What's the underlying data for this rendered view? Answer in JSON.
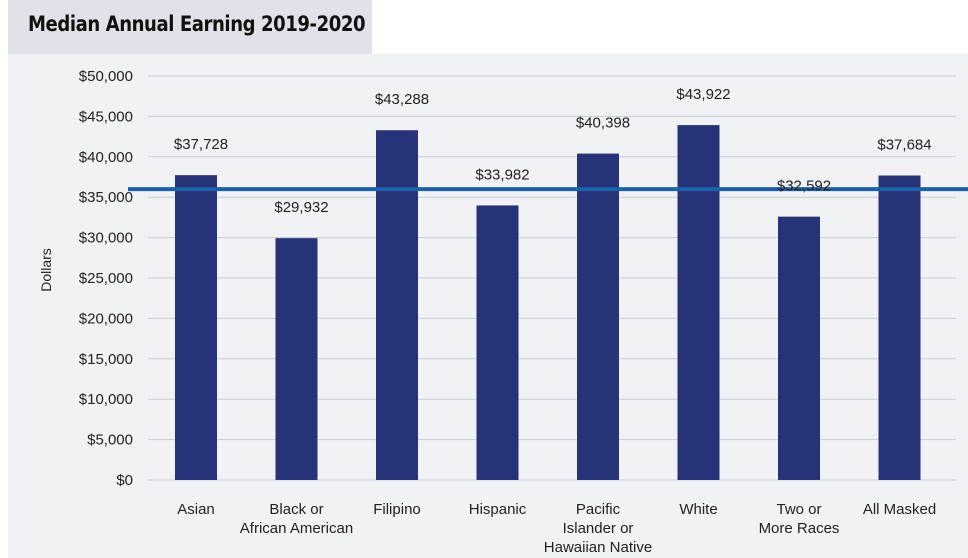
{
  "chart_data": {
    "type": "bar",
    "title": "Median Annual Earning 2019-2020",
    "ylabel": "Dollars",
    "xlabel": "",
    "ylim": [
      0,
      50000
    ],
    "yticks": [
      0,
      5000,
      10000,
      15000,
      20000,
      25000,
      30000,
      35000,
      40000,
      45000,
      50000
    ],
    "ytick_labels": [
      "$0",
      "$5,000",
      "$10,000",
      "$15,000",
      "$20,000",
      "$25,000",
      "$30,000",
      "$35,000",
      "$40,000",
      "$45,000",
      "$50,000"
    ],
    "categories": [
      "Asian",
      "Black or African American",
      "Filipino",
      "Hispanic",
      "Pacific Islander or Hawaiian Native",
      "White",
      "Two or More Races",
      "All Masked"
    ],
    "category_lines": [
      [
        "Asian"
      ],
      [
        "Black or",
        "African American"
      ],
      [
        "Filipino"
      ],
      [
        "Hispanic"
      ],
      [
        "Pacific",
        "Islander or",
        "Hawaiian Native"
      ],
      [
        "White"
      ],
      [
        "Two or",
        "More Races"
      ],
      [
        "All Masked"
      ]
    ],
    "values": [
      37728,
      29932,
      43288,
      33982,
      40398,
      43922,
      32592,
      37684
    ],
    "data_labels": [
      "$37,728",
      "$29,932",
      "$43,288",
      "$33,982",
      "$40,398",
      "$43,922",
      "$32,592",
      "$37,684"
    ],
    "reference_line": 36000,
    "grid": true,
    "bar_color": "#263378",
    "reference_line_color": "#1d62a8",
    "grid_color": "#c9ccd3"
  }
}
